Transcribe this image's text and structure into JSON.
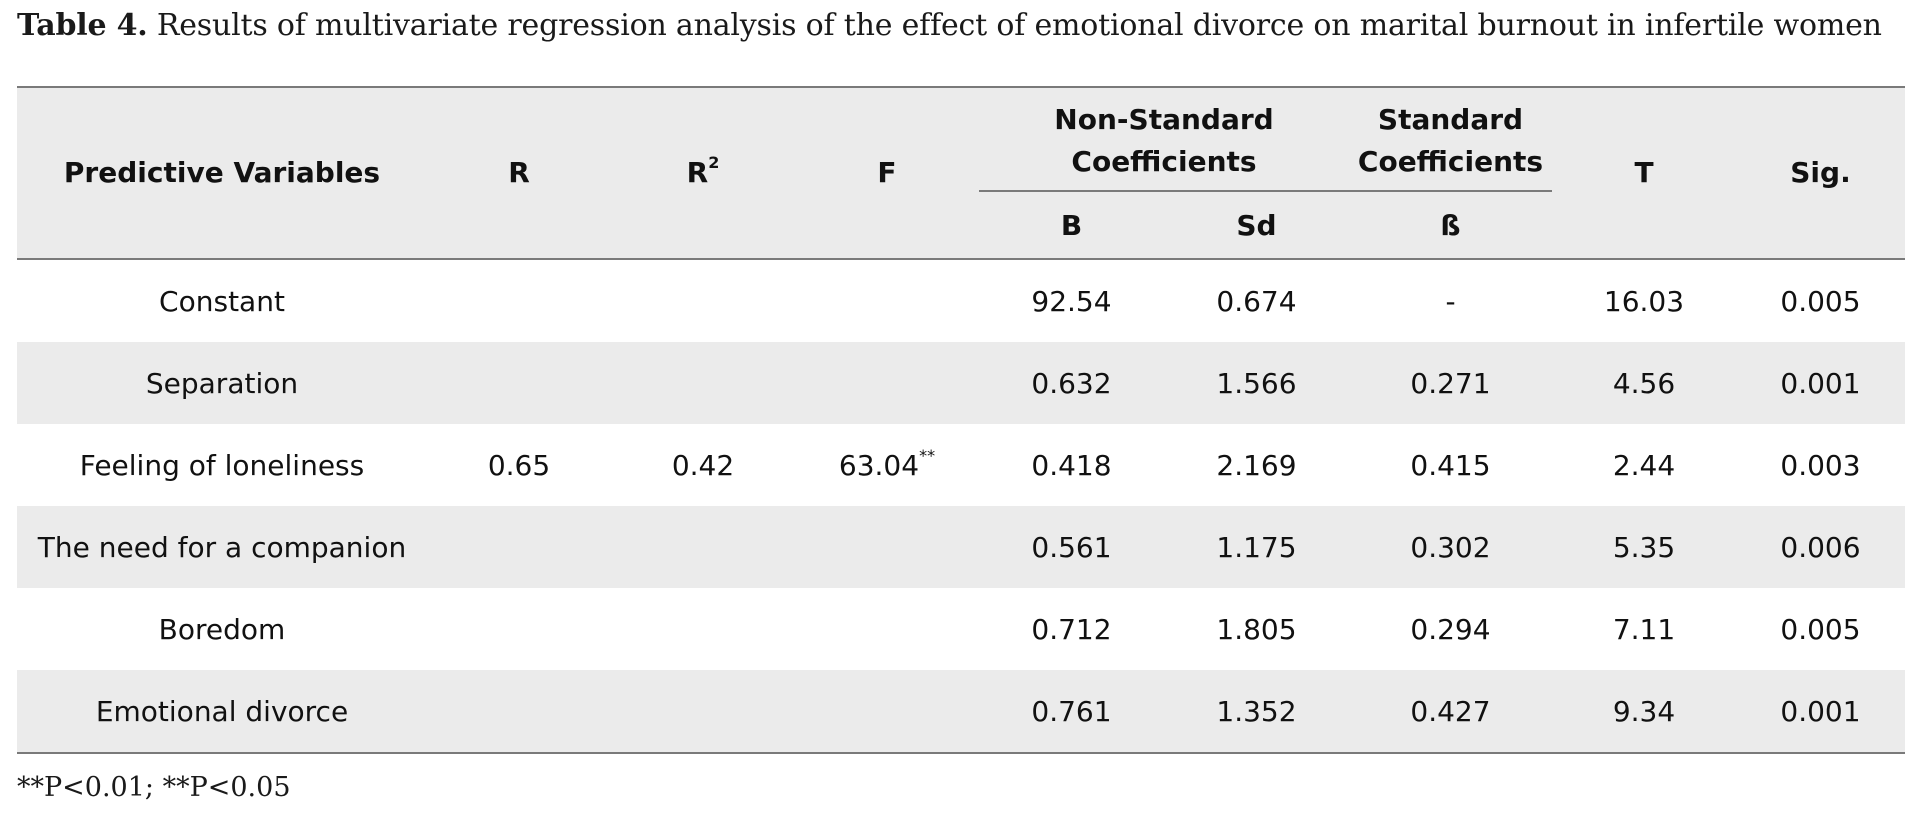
{
  "caption": {
    "label": "Table 4.",
    "text": " Results of multivariate regression analysis of the effect of emotional divorce on marital burnout in infertile women"
  },
  "headers": {
    "predictive": "Predictive Variables",
    "r": "R",
    "r2_base": "R",
    "r2_sup": "2",
    "f": "F",
    "nonstd": "Non-Standard Coefficients",
    "std": "Standard Coefficients",
    "t": "T",
    "sig": "Sig.",
    "b": "B",
    "sd": "Sd",
    "beta": "ß"
  },
  "rows": [
    {
      "variable": "Constant",
      "B": "92.54",
      "Sd": "0.674",
      "beta": "-",
      "T": "16.03",
      "sig": "0.005"
    },
    {
      "variable": "Separation",
      "B": "0.632",
      "Sd": "1.566",
      "beta": "0.271",
      "T": "4.56",
      "sig": "0.001"
    },
    {
      "variable": "Feeling of loneliness",
      "B": "0.418",
      "Sd": "2.169",
      "beta": "0.415",
      "T": "2.44",
      "sig": "0.003"
    },
    {
      "variable": "The need for a companion",
      "B": "0.561",
      "Sd": "1.175",
      "beta": "0.302",
      "T": "5.35",
      "sig": "0.006"
    },
    {
      "variable": "Boredom",
      "B": "0.712",
      "Sd": "1.805",
      "beta": "0.294",
      "T": "7.11",
      "sig": "0.005"
    },
    {
      "variable": "Emotional divorce",
      "B": "0.761",
      "Sd": "1.352",
      "beta": "0.427",
      "T": "9.34",
      "sig": "0.001"
    }
  ],
  "model": {
    "R": "0.65",
    "R2": "0.42",
    "F": "63.04",
    "F_sup": "**"
  },
  "footnote": "**P<0.01; **P<0.05"
}
